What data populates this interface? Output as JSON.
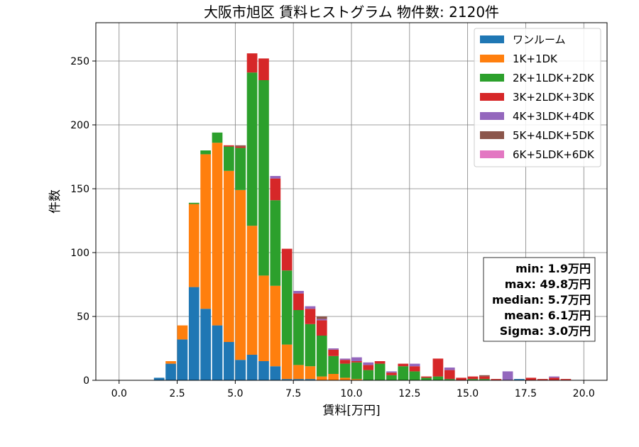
{
  "chart_data": {
    "type": "bar",
    "stacked": true,
    "title": "大阪市旭区 賃料ヒストグラム 物件数: 2120件",
    "xlabel": "賃料[万円]",
    "ylabel": "件数",
    "xlim": [
      -1.0,
      21.0
    ],
    "ylim": [
      0,
      280
    ],
    "xticks": [
      0.0,
      2.5,
      5.0,
      7.5,
      10.0,
      12.5,
      15.0,
      17.5,
      20.0
    ],
    "xtick_labels": [
      "0.0",
      "2.5",
      "5.0",
      "7.5",
      "10.0",
      "12.5",
      "15.0",
      "17.5",
      "20.0"
    ],
    "yticks": [
      0,
      50,
      100,
      150,
      200,
      250
    ],
    "ytick_labels": [
      "0",
      "50",
      "100",
      "150",
      "200",
      "250"
    ],
    "grid": true,
    "legend_position": "top-right",
    "bin_width": 0.5,
    "bin_starts": [
      1.5,
      2.0,
      2.5,
      3.0,
      3.5,
      4.0,
      4.5,
      5.0,
      5.5,
      6.0,
      6.5,
      7.0,
      7.5,
      8.0,
      8.5,
      9.0,
      9.5,
      10.0,
      10.5,
      11.0,
      11.5,
      12.0,
      12.5,
      13.0,
      13.5,
      14.0,
      14.5,
      15.0,
      15.5,
      16.0,
      16.5,
      17.0,
      17.5,
      18.0,
      18.5,
      19.0,
      19.5
    ],
    "series": [
      {
        "name": "ワンルーム",
        "color": "#1f77b4",
        "values": [
          2,
          13,
          32,
          73,
          56,
          43,
          30,
          16,
          20,
          15,
          11,
          1,
          1,
          1,
          0,
          0,
          0,
          0,
          0,
          0,
          0,
          0,
          0,
          0,
          0,
          0,
          0,
          0,
          0,
          0,
          0,
          1,
          0,
          0,
          0,
          0,
          0
        ]
      },
      {
        "name": "1K+1DK",
        "color": "#ff7f0e",
        "values": [
          0,
          2,
          11,
          65,
          121,
          143,
          134,
          133,
          101,
          67,
          63,
          27,
          11,
          10,
          3,
          5,
          2,
          1,
          0,
          0,
          0,
          0,
          0,
          0,
          0,
          0,
          0,
          0,
          0,
          0,
          0,
          0,
          0,
          0,
          0,
          0,
          0
        ]
      },
      {
        "name": "2K+1LDK+2DK",
        "color": "#2ca02c",
        "values": [
          0,
          0,
          0,
          1,
          3,
          8,
          19,
          33,
          120,
          153,
          67,
          58,
          43,
          33,
          32,
          14,
          11,
          13,
          8,
          13,
          4,
          11,
          7,
          2,
          3,
          1,
          0,
          1,
          1,
          0,
          0,
          0,
          0,
          0,
          0,
          0,
          0
        ]
      },
      {
        "name": "3K+2LDK+3DK",
        "color": "#d62728",
        "values": [
          0,
          0,
          0,
          0,
          0,
          0,
          1,
          1,
          15,
          17,
          17,
          17,
          13,
          12,
          12,
          5,
          3,
          1,
          4,
          2,
          2,
          2,
          4,
          1,
          14,
          7,
          2,
          2,
          2,
          1,
          0,
          0,
          2,
          1,
          2,
          1,
          0
        ]
      },
      {
        "name": "4K+3LDK+4DK",
        "color": "#9467bd",
        "values": [
          0,
          0,
          0,
          0,
          0,
          0,
          0,
          0,
          0,
          0,
          2,
          0,
          2,
          2,
          1,
          1,
          1,
          3,
          2,
          0,
          1,
          0,
          2,
          0,
          0,
          2,
          0,
          0,
          0,
          0,
          7,
          0,
          0,
          0,
          1,
          0,
          0
        ]
      },
      {
        "name": "5K+4LDK+5DK",
        "color": "#8c564b",
        "values": [
          0,
          0,
          0,
          0,
          0,
          0,
          0,
          1,
          0,
          0,
          0,
          0,
          0,
          0,
          2,
          0,
          0,
          0,
          0,
          0,
          0,
          0,
          0,
          0,
          0,
          0,
          0,
          0,
          1,
          0,
          0,
          0,
          0,
          0,
          0,
          0,
          0
        ]
      },
      {
        "name": "6K+5LDK+6DK",
        "color": "#e377c2",
        "values": [
          0,
          0,
          0,
          0,
          0,
          0,
          0,
          0,
          0,
          0,
          0,
          0,
          0,
          0,
          0,
          0,
          0,
          0,
          0,
          0,
          0,
          0,
          0,
          0,
          0,
          0,
          0,
          0,
          0,
          0,
          0,
          0,
          0,
          0,
          0,
          0,
          0
        ]
      }
    ],
    "stats_box": [
      "min: 1.9万円",
      "max: 49.8万円",
      "median: 5.7万円",
      "mean: 6.1万円",
      "Sigma: 3.0万円"
    ]
  }
}
